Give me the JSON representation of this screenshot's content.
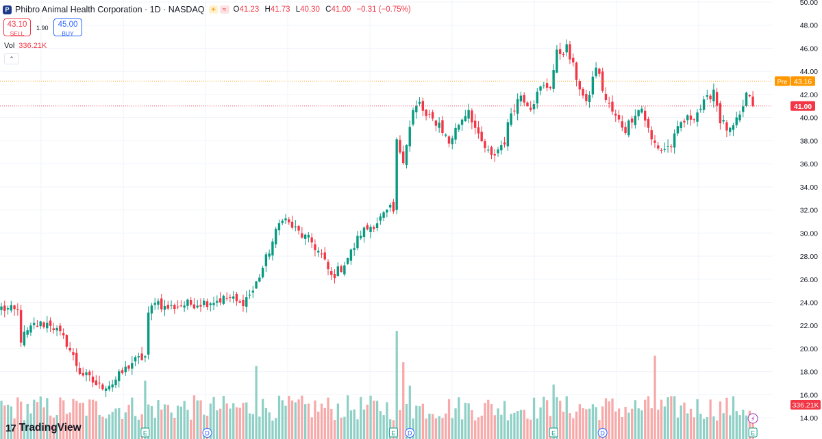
{
  "header": {
    "title": "Phibro Animal Health Corporation · 1D · NASDAQ",
    "open_label": "O",
    "open": "41.23",
    "high_label": "H",
    "high": "41.73",
    "low_label": "L",
    "low": "40.30",
    "close_label": "C",
    "close": "41.00",
    "change": "−0.31 (−0.75%)",
    "logo_letter": "P"
  },
  "trade": {
    "sell_price": "43.10",
    "sell_label": "SELL",
    "spread": "1.90",
    "buy_price": "45.00",
    "buy_label": "BUY"
  },
  "volume": {
    "label": "Vol",
    "value": "336.21K"
  },
  "branding": {
    "name": "TradingView",
    "logo_glyph": "17"
  },
  "colors": {
    "up": "#089981",
    "down": "#f23645",
    "up_vol": "#8fd0c6",
    "down_vol": "#f7a9a9",
    "pre_line": "#ff9800",
    "grid": "#f0f3fa",
    "axis_text": "#131722"
  },
  "chart_data": {
    "type": "candlestick",
    "y_axis": {
      "min": 13,
      "max": 50,
      "ticks": [
        "50.00",
        "48.00",
        "46.00",
        "44.00",
        "42.00",
        "40.00",
        "38.00",
        "36.00",
        "34.00",
        "32.00",
        "30.00",
        "28.00",
        "26.00",
        "24.00",
        "22.00",
        "20.00",
        "18.00",
        "16.00",
        "14.00"
      ]
    },
    "pre_market": {
      "label": "Pre",
      "value": 43.16,
      "text": "43.16"
    },
    "last_price": {
      "value": 41.0,
      "text": "41.00"
    },
    "volume_badge": "336.21K",
    "close_anchors": [
      [
        0,
        23.5
      ],
      [
        5,
        23.2
      ],
      [
        6,
        20.8
      ],
      [
        10,
        22.0
      ],
      [
        15,
        22.2
      ],
      [
        20,
        20.5
      ],
      [
        24,
        18.0
      ],
      [
        30,
        16.7
      ],
      [
        34,
        17.0
      ],
      [
        40,
        18.8
      ],
      [
        44,
        19.3
      ],
      [
        45,
        22.8
      ],
      [
        47,
        24.3
      ],
      [
        50,
        23.5
      ],
      [
        56,
        23.8
      ],
      [
        62,
        24.0
      ],
      [
        70,
        24.4
      ],
      [
        73,
        23.8
      ],
      [
        77,
        25.0
      ],
      [
        80,
        27.0
      ],
      [
        82,
        28.5
      ],
      [
        84,
        30.0
      ],
      [
        86,
        31.5
      ],
      [
        88,
        30.8
      ],
      [
        92,
        29.8
      ],
      [
        95,
        29.2
      ],
      [
        98,
        28.0
      ],
      [
        101,
        26.2
      ],
      [
        104,
        27.0
      ],
      [
        107,
        28.3
      ],
      [
        110,
        30.0
      ],
      [
        115,
        31.0
      ],
      [
        119,
        32.0
      ],
      [
        120,
        31.8
      ],
      [
        121,
        37.8
      ],
      [
        123,
        36.5
      ],
      [
        126,
        40.5
      ],
      [
        128,
        41.2
      ],
      [
        130,
        40.0
      ],
      [
        134,
        39.5
      ],
      [
        137,
        37.8
      ],
      [
        140,
        39.5
      ],
      [
        143,
        40.8
      ],
      [
        146,
        38.2
      ],
      [
        150,
        36.5
      ],
      [
        154,
        38.0
      ],
      [
        156,
        40.5
      ],
      [
        159,
        42.0
      ],
      [
        162,
        41.0
      ],
      [
        165,
        42.5
      ],
      [
        168,
        42.8
      ],
      [
        170,
        45.5
      ],
      [
        173,
        46.0
      ],
      [
        176,
        43.5
      ],
      [
        179,
        41.0
      ],
      [
        182,
        44.5
      ],
      [
        185,
        41.5
      ],
      [
        188,
        40.0
      ],
      [
        191,
        39.0
      ],
      [
        194,
        40.5
      ],
      [
        196,
        40.8
      ],
      [
        199,
        38.0
      ],
      [
        202,
        37.2
      ],
      [
        205,
        37.6
      ],
      [
        208,
        39.5
      ],
      [
        212,
        40.2
      ],
      [
        216,
        41.5
      ],
      [
        218,
        42.5
      ],
      [
        220,
        39.8
      ],
      [
        223,
        38.7
      ],
      [
        226,
        40.0
      ],
      [
        228,
        42.0
      ],
      [
        230,
        41.0
      ]
    ],
    "volume_max_k": 1500,
    "events": [
      {
        "type": "E",
        "index": 44
      },
      {
        "type": "D",
        "index": 63
      },
      {
        "type": "E",
        "index": 120
      },
      {
        "type": "D",
        "index": 125
      },
      {
        "type": "E",
        "index": 169
      },
      {
        "type": "D",
        "index": 184
      },
      {
        "type": "E",
        "index": 230
      }
    ],
    "lightning_index": 230
  }
}
